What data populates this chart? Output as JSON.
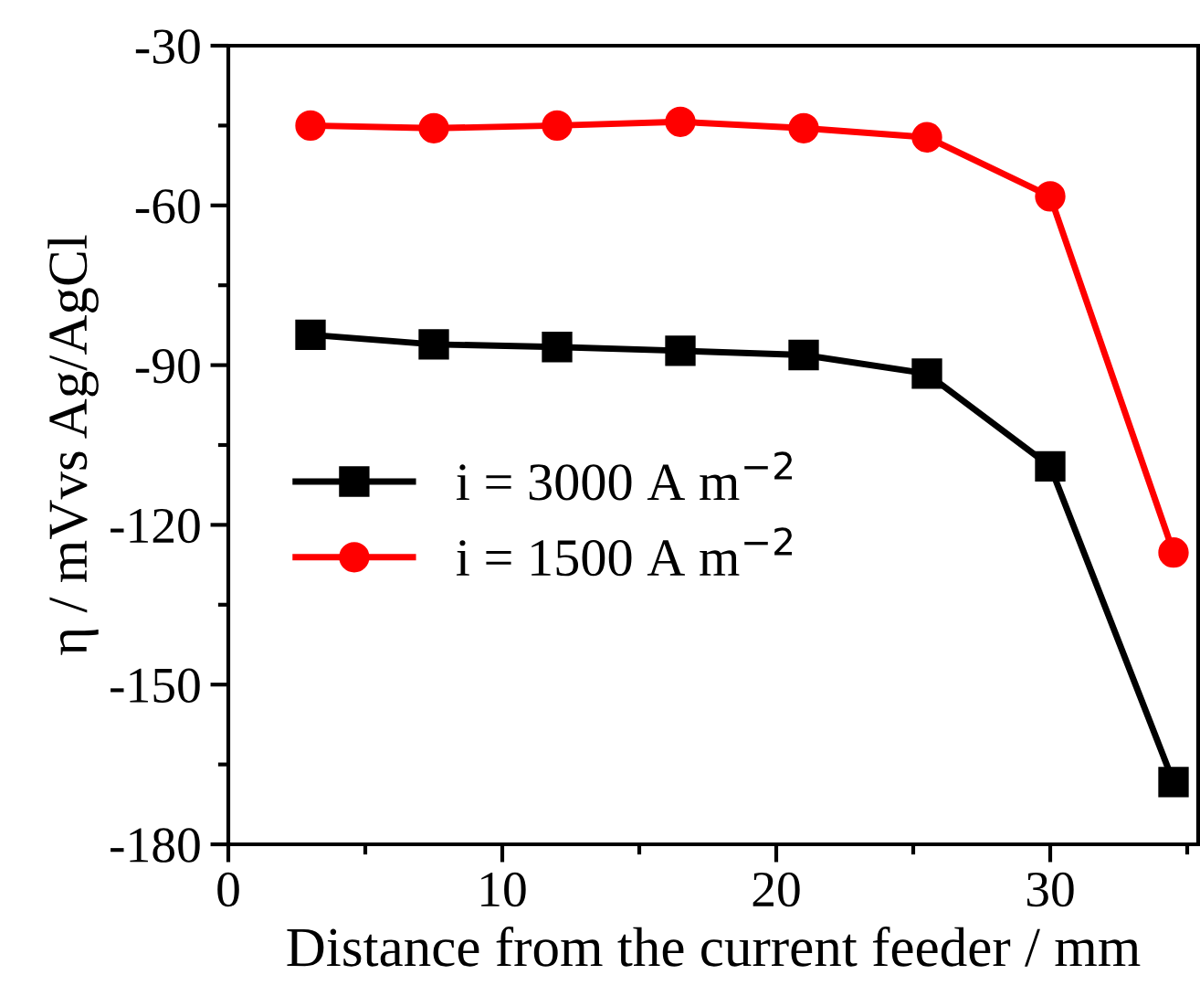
{
  "chart_data": {
    "type": "line",
    "xlabel": "Distance from the current feeder / mm",
    "ylabel": "η / mVvs Ag/AgCl",
    "xlim": [
      0,
      35.4
    ],
    "xticks": [
      0,
      10,
      20,
      30
    ],
    "ylim": [
      -180,
      -30
    ],
    "yticks": [
      -180,
      -150,
      -120,
      -90,
      -60,
      -30
    ],
    "grid": false,
    "legend": "left",
    "line_style": "solid",
    "series": [
      {
        "name": "i = 3000 A m$^{−2}$",
        "color": "#000000",
        "marker": "square",
        "x": [
          3,
          7.5,
          12,
          16.5,
          21,
          25.5,
          30,
          34.5
        ],
        "values": [
          -84.3,
          -86.1,
          -86.6,
          -87.3,
          -88.1,
          -91.6,
          -109,
          -168.3
        ]
      },
      {
        "name": "i = 1500 A m$^{−2}$",
        "color": "#ff0000",
        "marker": "circle",
        "x": [
          3,
          7.5,
          12,
          16.5,
          21,
          25.5,
          30,
          34.5
        ],
        "values": [
          -45,
          -45.5,
          -45,
          -44.3,
          -45.5,
          -47.2,
          -58.3,
          -125.2
        ]
      }
    ]
  }
}
